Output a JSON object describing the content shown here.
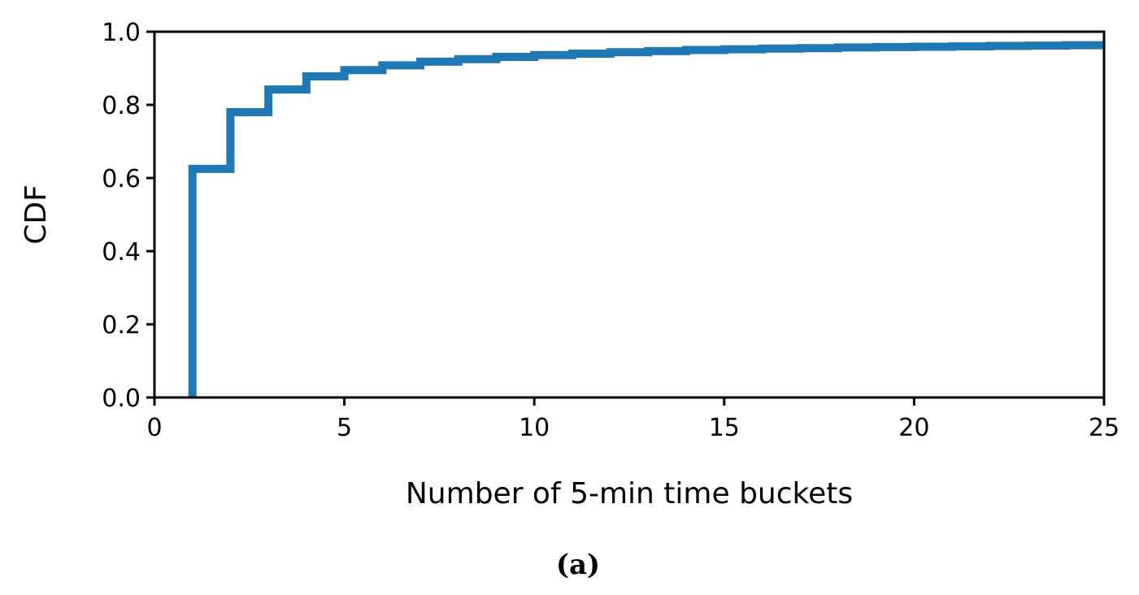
{
  "chart_data": {
    "type": "line",
    "step": true,
    "xlabel": "Number of 5-min time buckets",
    "ylabel": "CDF",
    "xlim": [
      0,
      25
    ],
    "ylim": [
      0.0,
      1.0
    ],
    "xticks": [
      0,
      5,
      10,
      15,
      20,
      25
    ],
    "yticks": [
      0.0,
      0.2,
      0.4,
      0.6,
      0.8,
      1.0
    ],
    "xtick_labels": [
      "0",
      "5",
      "10",
      "15",
      "20",
      "25"
    ],
    "ytick_labels": [
      "0.0",
      "0.2",
      "0.4",
      "0.6",
      "0.8",
      "1.0"
    ],
    "grid": false,
    "series": [
      {
        "color": "#1f77b4",
        "x": [
          1,
          2,
          3,
          4,
          5,
          6,
          7,
          8,
          9,
          10,
          11,
          12,
          13,
          14,
          15,
          16,
          17,
          18,
          19,
          20,
          21,
          22,
          23,
          24,
          25
        ],
        "y": [
          0.625,
          0.78,
          0.842,
          0.878,
          0.895,
          0.908,
          0.918,
          0.925,
          0.931,
          0.936,
          0.94,
          0.944,
          0.947,
          0.95,
          0.952,
          0.954,
          0.955,
          0.957,
          0.958,
          0.959,
          0.96,
          0.961,
          0.962,
          0.963,
          0.964
        ]
      }
    ]
  },
  "caption": "(a)"
}
